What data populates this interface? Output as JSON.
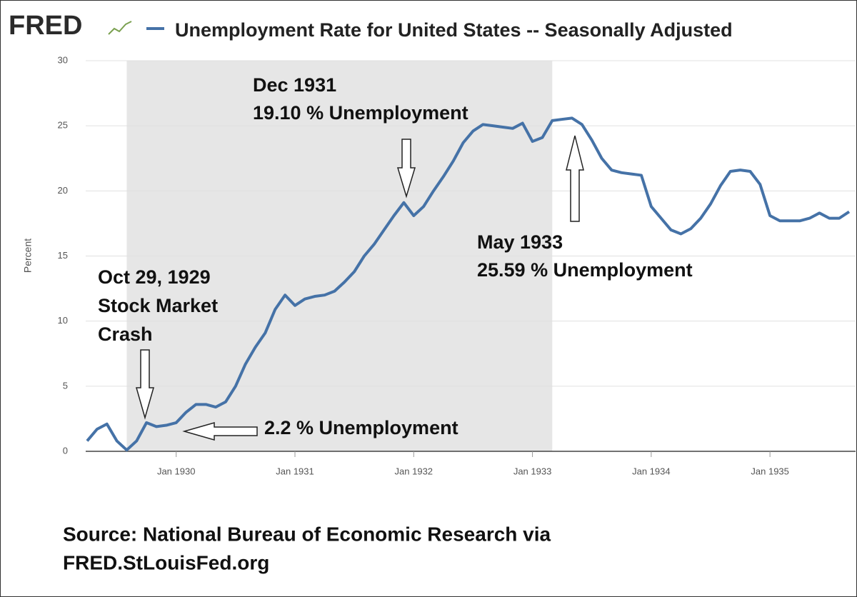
{
  "chart_data": {
    "type": "line",
    "logo": "FRED",
    "ylabel": "Percent",
    "x": [
      "1929-04",
      "1929-05",
      "1929-06",
      "1929-07",
      "1929-08",
      "1929-09",
      "1929-10",
      "1929-11",
      "1929-12",
      "1930-01",
      "1930-02",
      "1930-03",
      "1930-04",
      "1930-05",
      "1930-06",
      "1930-07",
      "1930-08",
      "1930-09",
      "1930-10",
      "1930-11",
      "1930-12",
      "1931-01",
      "1931-02",
      "1931-03",
      "1931-04",
      "1931-05",
      "1931-06",
      "1931-07",
      "1931-08",
      "1931-09",
      "1931-10",
      "1931-11",
      "1931-12",
      "1932-01",
      "1932-02",
      "1932-03",
      "1932-04",
      "1932-05",
      "1932-06",
      "1932-07",
      "1932-08",
      "1932-09",
      "1932-10",
      "1932-11",
      "1932-12",
      "1933-01",
      "1933-02",
      "1933-03",
      "1933-04",
      "1933-05",
      "1933-06",
      "1933-07",
      "1933-08",
      "1933-09",
      "1933-10",
      "1933-11",
      "1933-12",
      "1934-01",
      "1934-02",
      "1934-03",
      "1934-04",
      "1934-05",
      "1934-06",
      "1934-07",
      "1934-08",
      "1934-09",
      "1934-10",
      "1934-11",
      "1934-12",
      "1935-01",
      "1935-02",
      "1935-03",
      "1935-04",
      "1935-05",
      "1935-06",
      "1935-07",
      "1935-08",
      "1935-09"
    ],
    "series": [
      {
        "name": "Unemployment Rate for United States -- Seasonally Adjusted",
        "color": "#4572a7",
        "values": [
          0.8,
          1.7,
          2.1,
          0.8,
          0.1,
          0.8,
          2.2,
          1.9,
          2.0,
          2.2,
          3.0,
          3.6,
          3.6,
          3.4,
          3.8,
          5.0,
          6.7,
          8.0,
          9.1,
          10.9,
          12.0,
          11.2,
          11.7,
          11.9,
          12.0,
          12.3,
          13.0,
          13.8,
          15.0,
          15.9,
          17.0,
          18.1,
          19.1,
          18.1,
          18.8,
          20.0,
          21.1,
          22.3,
          23.7,
          24.6,
          25.1,
          25.0,
          24.9,
          24.8,
          25.2,
          23.8,
          24.1,
          25.4,
          25.5,
          25.59,
          25.1,
          23.9,
          22.5,
          21.6,
          21.4,
          21.3,
          21.2,
          18.8,
          17.9,
          17.0,
          16.7,
          17.1,
          17.9,
          19.0,
          20.4,
          21.5,
          21.6,
          21.5,
          20.5,
          18.1,
          17.7,
          17.7,
          17.7,
          17.9,
          18.3,
          17.9,
          17.9,
          18.4
        ]
      }
    ],
    "xlim": [
      "1929-04",
      "1935-09"
    ],
    "xticks": [
      {
        "value": "1930-01",
        "label": "Jan 1930"
      },
      {
        "value": "1931-01",
        "label": "Jan 1931"
      },
      {
        "value": "1932-01",
        "label": "Jan 1932"
      },
      {
        "value": "1933-01",
        "label": "Jan 1933"
      },
      {
        "value": "1934-01",
        "label": "Jan 1934"
      },
      {
        "value": "1935-01",
        "label": "Jan 1935"
      }
    ],
    "ylim": [
      0,
      30
    ],
    "yticks": [
      0,
      5,
      10,
      15,
      20,
      25,
      30
    ],
    "grid": true,
    "recession": {
      "start": "1929-08",
      "end": "1933-03",
      "color": "#e6e6e6"
    },
    "annotations": {
      "crash": [
        "Oct 29, 1929",
        "Stock Market",
        "Crash"
      ],
      "low": "2.2 % Unemployment",
      "dec1931": [
        "Dec 1931",
        "19.10 % Unemployment"
      ],
      "may1933": [
        "May 1933",
        "25.59 % Unemployment"
      ]
    },
    "source": [
      "Source: National Bureau of Economic Research via",
      "FRED.StLouisFed.org"
    ]
  }
}
